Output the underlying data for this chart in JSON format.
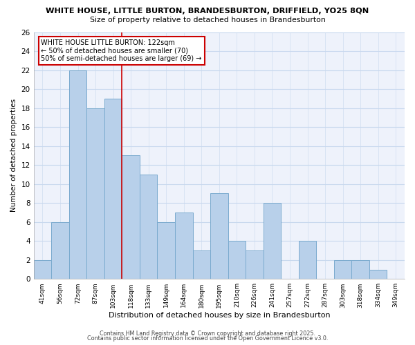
{
  "title1": "WHITE HOUSE, LITTLE BURTON, BRANDESBURTON, DRIFFIELD, YO25 8QN",
  "title2": "Size of property relative to detached houses in Brandesburton",
  "xlabel": "Distribution of detached houses by size in Brandesburton",
  "ylabel": "Number of detached properties",
  "categories": [
    "41sqm",
    "56sqm",
    "72sqm",
    "87sqm",
    "103sqm",
    "118sqm",
    "133sqm",
    "149sqm",
    "164sqm",
    "180sqm",
    "195sqm",
    "210sqm",
    "226sqm",
    "241sqm",
    "257sqm",
    "272sqm",
    "287sqm",
    "303sqm",
    "318sqm",
    "334sqm",
    "349sqm"
  ],
  "values": [
    2,
    6,
    22,
    18,
    19,
    13,
    11,
    6,
    7,
    3,
    9,
    4,
    3,
    8,
    0,
    4,
    0,
    2,
    2,
    1,
    0
  ],
  "bar_color": "#b8d0ea",
  "bar_edge_color": "#7aaace",
  "highlight_line_color": "#cc0000",
  "highlight_line_index": 4.5,
  "ylim": [
    0,
    26
  ],
  "yticks": [
    0,
    2,
    4,
    6,
    8,
    10,
    12,
    14,
    16,
    18,
    20,
    22,
    24,
    26
  ],
  "grid_color": "#c8d8ee",
  "bg_color": "#eef2fb",
  "annotation_title": "WHITE HOUSE LITTLE BURTON: 122sqm",
  "annotation_line1": "← 50% of detached houses are smaller (70)",
  "annotation_line2": "50% of semi-detached houses are larger (69) →",
  "ann_box_color": "#cc0000",
  "footer1": "Contains HM Land Registry data © Crown copyright and database right 2025.",
  "footer2": "Contains public sector information licensed under the Open Government Licence v3.0."
}
